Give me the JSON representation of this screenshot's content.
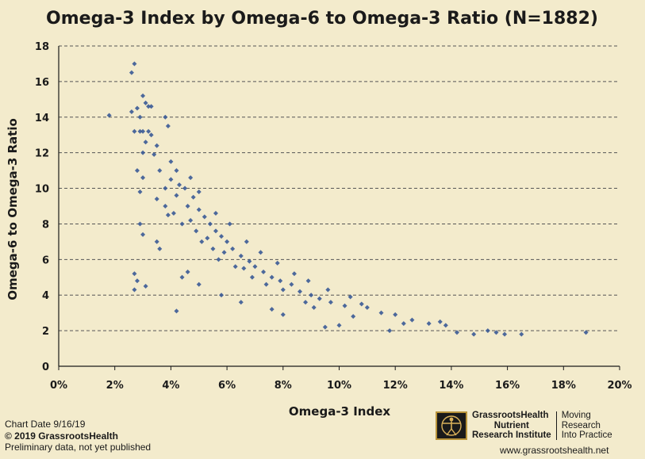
{
  "chart_data": {
    "type": "scatter",
    "title": "Omega-3 Index by Omega-6 to Omega-3 Ratio (N=1882)",
    "xlabel": "Omega-3 Index",
    "ylabel": "Omega-6 to Omega-3 Ratio",
    "xlim": [
      0,
      20
    ],
    "ylim": [
      0,
      18
    ],
    "x_ticks": [
      "0%",
      "2%",
      "4%",
      "6%",
      "8%",
      "10%",
      "12%",
      "14%",
      "16%",
      "18%",
      "20%"
    ],
    "y_ticks": [
      "0",
      "2",
      "4",
      "6",
      "8",
      "10",
      "12",
      "14",
      "16",
      "18"
    ],
    "grid": "horizontal dashed",
    "marker_color": "#3a5a96",
    "points": [
      [
        1.8,
        14.1
      ],
      [
        2.6,
        16.5
      ],
      [
        2.7,
        17.0
      ],
      [
        2.6,
        14.3
      ],
      [
        2.8,
        14.5
      ],
      [
        2.9,
        14.0
      ],
      [
        3.0,
        15.2
      ],
      [
        3.1,
        14.8
      ],
      [
        3.2,
        14.6
      ],
      [
        3.3,
        14.6
      ],
      [
        2.7,
        13.2
      ],
      [
        2.9,
        13.2
      ],
      [
        3.0,
        13.2
      ],
      [
        3.2,
        13.2
      ],
      [
        3.3,
        13.0
      ],
      [
        3.1,
        12.6
      ],
      [
        3.5,
        12.4
      ],
      [
        3.0,
        12.0
      ],
      [
        3.4,
        11.9
      ],
      [
        3.8,
        14.0
      ],
      [
        3.9,
        13.5
      ],
      [
        2.8,
        11.0
      ],
      [
        3.0,
        10.6
      ],
      [
        2.9,
        9.8
      ],
      [
        2.9,
        8.0
      ],
      [
        3.0,
        7.4
      ],
      [
        2.7,
        5.2
      ],
      [
        2.8,
        4.8
      ],
      [
        2.7,
        4.3
      ],
      [
        3.1,
        4.5
      ],
      [
        4.2,
        3.1
      ],
      [
        3.5,
        7.0
      ],
      [
        3.6,
        6.6
      ],
      [
        3.9,
        8.5
      ],
      [
        4.6,
        5.3
      ],
      [
        4.4,
        5.0
      ],
      [
        5.0,
        4.6
      ],
      [
        5.8,
        4.0
      ],
      [
        6.5,
        3.6
      ],
      [
        7.6,
        3.2
      ],
      [
        8.0,
        2.9
      ],
      [
        9.5,
        2.2
      ],
      [
        10.5,
        2.8
      ],
      [
        10.0,
        2.3
      ],
      [
        11.8,
        2.0
      ],
      [
        12.3,
        2.4
      ],
      [
        12.6,
        2.6
      ],
      [
        13.2,
        2.4
      ],
      [
        13.6,
        2.5
      ],
      [
        13.8,
        2.3
      ],
      [
        14.2,
        1.9
      ],
      [
        14.8,
        1.8
      ],
      [
        15.3,
        2.0
      ],
      [
        15.6,
        1.9
      ],
      [
        15.9,
        1.8
      ],
      [
        16.5,
        1.8
      ],
      [
        18.8,
        1.9
      ],
      [
        11.0,
        3.3
      ],
      [
        11.5,
        3.0
      ],
      [
        12.0,
        2.9
      ],
      [
        4.0,
        11.5
      ],
      [
        4.2,
        11.0
      ],
      [
        4.0,
        10.5
      ],
      [
        4.3,
        10.2
      ],
      [
        4.5,
        10.0
      ],
      [
        4.2,
        9.6
      ],
      [
        4.8,
        9.5
      ],
      [
        4.6,
        9.0
      ],
      [
        5.0,
        8.8
      ],
      [
        5.2,
        8.4
      ],
      [
        4.7,
        8.2
      ],
      [
        5.4,
        8.0
      ],
      [
        5.6,
        7.6
      ],
      [
        5.8,
        7.3
      ],
      [
        5.3,
        7.2
      ],
      [
        6.0,
        7.0
      ],
      [
        6.2,
        6.6
      ],
      [
        5.9,
        6.4
      ],
      [
        6.5,
        6.2
      ],
      [
        6.8,
        5.9
      ],
      [
        7.0,
        5.6
      ],
      [
        6.6,
        5.5
      ],
      [
        7.3,
        5.3
      ],
      [
        7.6,
        5.0
      ],
      [
        7.9,
        4.8
      ],
      [
        8.3,
        4.6
      ],
      [
        8.0,
        4.3
      ],
      [
        8.6,
        4.2
      ],
      [
        9.0,
        4.0
      ],
      [
        9.3,
        3.8
      ],
      [
        9.7,
        3.6
      ],
      [
        10.2,
        3.4
      ],
      [
        3.6,
        11.0
      ],
      [
        3.8,
        10.0
      ],
      [
        3.5,
        9.4
      ],
      [
        3.8,
        9.0
      ],
      [
        4.1,
        8.6
      ],
      [
        4.4,
        8.0
      ],
      [
        4.9,
        7.6
      ],
      [
        5.1,
        7.0
      ],
      [
        5.5,
        6.6
      ],
      [
        5.7,
        6.0
      ],
      [
        6.3,
        5.6
      ],
      [
        6.9,
        5.0
      ],
      [
        7.4,
        4.6
      ],
      [
        8.8,
        3.6
      ],
      [
        9.1,
        3.3
      ],
      [
        6.1,
        8.0
      ],
      [
        5.6,
        8.6
      ],
      [
        5.0,
        9.8
      ],
      [
        4.7,
        10.6
      ],
      [
        6.7,
        7.0
      ],
      [
        7.2,
        6.4
      ],
      [
        7.8,
        5.8
      ],
      [
        8.4,
        5.2
      ],
      [
        8.9,
        4.8
      ],
      [
        9.6,
        4.3
      ],
      [
        10.4,
        3.9
      ],
      [
        10.8,
        3.5
      ]
    ]
  },
  "footer": {
    "chart_date": "Chart Date 9/16/19",
    "copyright": "© 2019 GrassrootsHealth",
    "preliminary": "Preliminary data, not yet published",
    "website": "www.grassrootshealth.net"
  },
  "logo": {
    "name_lines": [
      "GrassrootsHealth",
      "Nutrient",
      "Research Institute"
    ],
    "tagline_lines": [
      "Moving",
      "Research",
      "Into Practice"
    ]
  },
  "colors": {
    "background": "#f3ebcc",
    "marker": "#3a5a96",
    "grid": "#555555",
    "text": "#1a1a1a"
  },
  "icons": [
    "vitruvian-man-icon"
  ]
}
